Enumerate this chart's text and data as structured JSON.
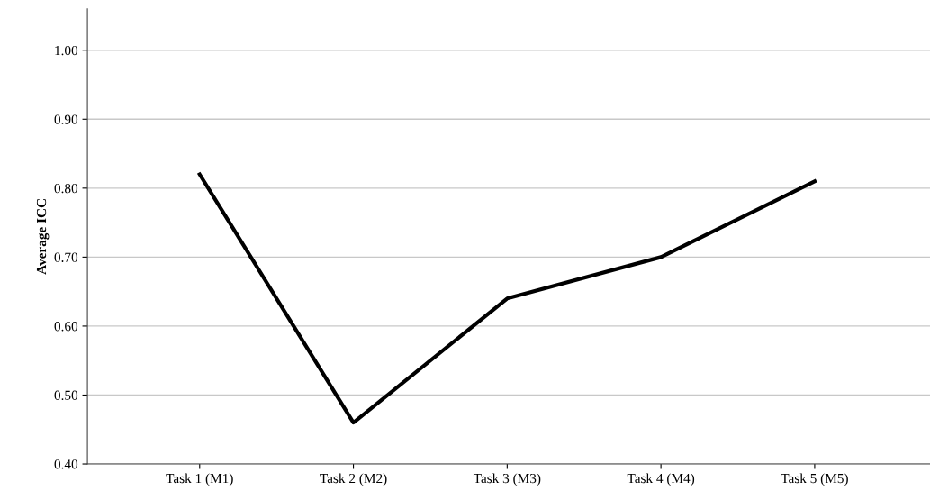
{
  "chart_data": {
    "type": "line",
    "ylabel": "Average ICC",
    "categories": [
      "Task 1 (M1)",
      "Task 2 (M2)",
      "Task 3 (M3)",
      "Task 4 (M4)",
      "Task 5 (M5)"
    ],
    "series": [
      {
        "color": "#000000",
        "values": [
          0.82,
          0.46,
          0.64,
          0.7,
          0.81
        ]
      }
    ],
    "ylim": [
      0.4,
      1.06
    ],
    "yticks": [
      {
        "value": 0.4,
        "label": "0.40"
      },
      {
        "value": 0.5,
        "label": "0.50"
      },
      {
        "value": 0.6,
        "label": "0.60"
      },
      {
        "value": 0.7,
        "label": "0.70"
      },
      {
        "value": 0.8,
        "label": "0.80"
      },
      {
        "value": 0.9,
        "label": "0.90"
      },
      {
        "value": 1.0,
        "label": "1.00"
      }
    ],
    "grid": "y",
    "marker": "none",
    "line_style": "solid",
    "legend": false
  }
}
